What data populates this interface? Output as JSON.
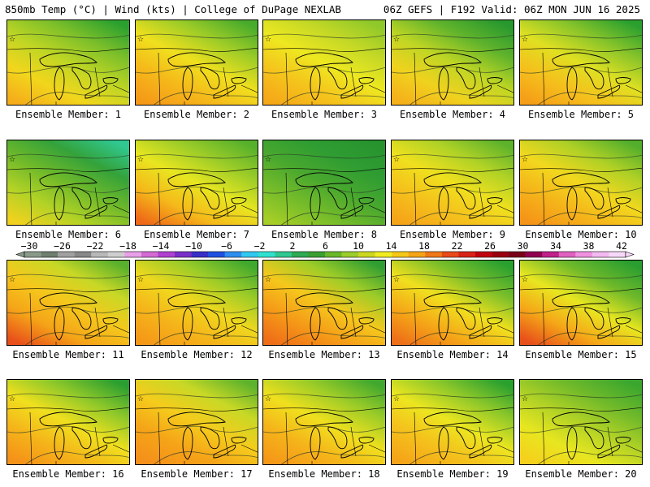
{
  "header": {
    "left": "850mb Temp (°C) | Wind (kts) | College of DuPage NEXLAB",
    "right": "06Z GEFS | F192 Valid: 06Z MON JUN 16 2025"
  },
  "colorbar": {
    "labels": [
      "−30",
      "−26",
      "−22",
      "−18",
      "−14",
      "−10",
      "−6",
      "−2",
      "2",
      "6",
      "10",
      "14",
      "18",
      "22",
      "26",
      "30",
      "34",
      "38",
      "42"
    ],
    "colors": [
      "#8a9a8a",
      "#6f7f6f",
      "#a0a0a0",
      "#888888",
      "#b8b8b8",
      "#cfcfcf",
      "#e8a0e8",
      "#d46ad4",
      "#b040d0",
      "#7a2ec8",
      "#3a2ec8",
      "#2050e0",
      "#2e8ef0",
      "#30c8f0",
      "#30e0d0",
      "#30c890",
      "#2faa55",
      "#3aa032",
      "#6ab82a",
      "#9ccc2a",
      "#ccd820",
      "#f0ec20",
      "#f5c818",
      "#f5a418",
      "#f07818",
      "#e84a18",
      "#d82218",
      "#c00010",
      "#9a0010",
      "#780018",
      "#900050",
      "#c0208a",
      "#e060c0",
      "#f090e0",
      "#f4b8f0",
      "#f8d8f8"
    ]
  },
  "members": [
    {
      "label": "Ensemble Member: 1",
      "colors": [
        "#2aa02f",
        "#7cbf2a",
        "#c0d624",
        "#f2d61c",
        "#f5ae1a"
      ]
    },
    {
      "label": "Ensemble Member: 2",
      "colors": [
        "#48ab2c",
        "#9dcc27",
        "#f0e01e",
        "#f5b81a",
        "#f59a18"
      ]
    },
    {
      "label": "Ensemble Member: 3",
      "colors": [
        "#8ec82a",
        "#c4d826",
        "#eee820",
        "#f5c41c",
        "#f5a818"
      ]
    },
    {
      "label": "Ensemble Member: 4",
      "colors": [
        "#28982e",
        "#62b42c",
        "#c0d624",
        "#f0d21e",
        "#f5b01a"
      ]
    },
    {
      "label": "Ensemble Member: 5",
      "colors": [
        "#2aa02f",
        "#88c42a",
        "#e0e022",
        "#f5c01c",
        "#f59e18"
      ]
    },
    {
      "label": "Ensemble Member: 6",
      "colors": [
        "#30c890",
        "#34a23a",
        "#6fb92a",
        "#b2d226",
        "#f0d21e"
      ]
    },
    {
      "label": "Ensemble Member: 7",
      "colors": [
        "#56b02c",
        "#9ccc28",
        "#e8e620",
        "#f5ba1a",
        "#ef6a18"
      ]
    },
    {
      "label": "Ensemble Member: 8",
      "colors": [
        "#27932e",
        "#2f9d32",
        "#4aa82e",
        "#76bc2a",
        "#a6ce26"
      ]
    },
    {
      "label": "Ensemble Member: 9",
      "colors": [
        "#5db22c",
        "#b0d226",
        "#f0e01e",
        "#f5c01c",
        "#f5a418"
      ]
    },
    {
      "label": "Ensemble Member: 10",
      "colors": [
        "#52ae2c",
        "#aed026",
        "#f2d81e",
        "#f5b41a",
        "#f59418"
      ]
    },
    {
      "label": "Ensemble Member: 11",
      "colors": [
        "#58b02c",
        "#c8d826",
        "#f5c81c",
        "#f5a418",
        "#e8501a"
      ]
    },
    {
      "label": "Ensemble Member: 12",
      "colors": [
        "#40a82e",
        "#9ccc28",
        "#f0d81e",
        "#f5b41a",
        "#f59818"
      ]
    },
    {
      "label": "Ensemble Member: 13",
      "colors": [
        "#2f9d32",
        "#9ccc28",
        "#f5c81c",
        "#f59a18",
        "#ef6e18"
      ]
    },
    {
      "label": "Ensemble Member: 14",
      "colors": [
        "#2aa02f",
        "#7cbf2a",
        "#f0e01e",
        "#f5a818",
        "#ee7018"
      ]
    },
    {
      "label": "Ensemble Member: 15",
      "colors": [
        "#2a9e30",
        "#6fb92a",
        "#e8e620",
        "#f5a818",
        "#e8501a"
      ]
    },
    {
      "label": "Ensemble Member: 16",
      "colors": [
        "#2a9e30",
        "#8ec82a",
        "#f0e01e",
        "#f5b41a",
        "#f59218"
      ]
    },
    {
      "label": "Ensemble Member: 17",
      "colors": [
        "#5db22c",
        "#c8d826",
        "#f5cc1c",
        "#f5a418",
        "#f5901a"
      ]
    },
    {
      "label": "Ensemble Member: 18",
      "colors": [
        "#40a82e",
        "#9ccc28",
        "#f0e01e",
        "#f5b41a",
        "#f59818"
      ]
    },
    {
      "label": "Ensemble Member: 19",
      "colors": [
        "#2aa02f",
        "#8ec82a",
        "#ece620",
        "#f5c01c",
        "#f5a418"
      ]
    },
    {
      "label": "Ensemble Member: 20",
      "colors": [
        "#3aa62e",
        "#6fb92a",
        "#b2d226",
        "#e8e620",
        "#f5d01c"
      ]
    }
  ]
}
